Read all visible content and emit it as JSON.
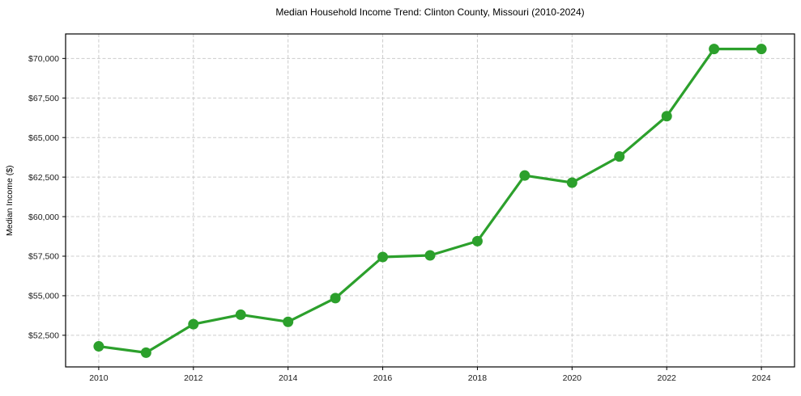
{
  "chart_data": {
    "type": "line",
    "title": "Median Household Income Trend: Clinton County, Missouri (2010-2024)",
    "xlabel": "",
    "ylabel": "Median Income ($)",
    "x": [
      2010,
      2011,
      2012,
      2013,
      2014,
      2015,
      2016,
      2017,
      2018,
      2019,
      2020,
      2021,
      2022,
      2023,
      2024
    ],
    "series": [
      {
        "name": "Median Household Income",
        "color": "#2ca02c",
        "values": [
          51800,
          51400,
          53200,
          53800,
          53350,
          54850,
          57450,
          57550,
          58450,
          62600,
          62150,
          63800,
          66350,
          70600,
          70600
        ]
      }
    ],
    "x_ticks": [
      2010,
      2012,
      2014,
      2016,
      2018,
      2020,
      2022,
      2024
    ],
    "y_ticks": [
      {
        "value": 52500,
        "label": "$52,500"
      },
      {
        "value": 55000,
        "label": "$55,000"
      },
      {
        "value": 57500,
        "label": "$57,500"
      },
      {
        "value": 60000,
        "label": "$60,000"
      },
      {
        "value": 62500,
        "label": "$62,500"
      },
      {
        "value": 65000,
        "label": "$65,000"
      },
      {
        "value": 67500,
        "label": "$67,500"
      },
      {
        "value": 70000,
        "label": "$70,000"
      }
    ],
    "xlim": [
      2009.3,
      2024.7
    ],
    "ylim": [
      50500,
      71550
    ],
    "grid": true,
    "legend": "none",
    "marker": "circle",
    "colors": {
      "line": "#2ca02c",
      "grid": "#cccccc",
      "spine": "#000000",
      "background": "#ffffff",
      "text": "#1a1a1a"
    }
  }
}
